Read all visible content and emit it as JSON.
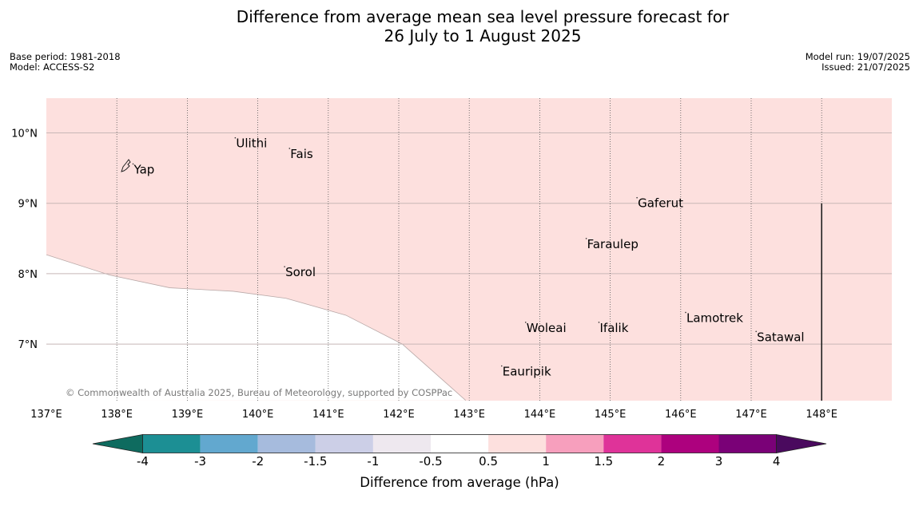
{
  "title": {
    "line1": "Difference from average mean sea level pressure forecast for",
    "line2": "26 July to 1 August 2025"
  },
  "meta_left": {
    "base_period": "Base period: 1981-2018",
    "model": "Model: ACCESS-S2"
  },
  "meta_right": {
    "model_run": "Model run: 19/07/2025",
    "issued": "Issued: 21/07/2025"
  },
  "map": {
    "fill_color": "#fde0de",
    "background_color": "#ffffff",
    "lon_ticks": [
      "137°E",
      "138°E",
      "139°E",
      "140°E",
      "141°E",
      "142°E",
      "143°E",
      "144°E",
      "145°E",
      "146°E",
      "147°E",
      "148°E"
    ],
    "lon_values": [
      137,
      138,
      139,
      140,
      141,
      142,
      143,
      144,
      145,
      146,
      147,
      148
    ],
    "lat_ticks": [
      "10°N",
      "9°N",
      "8°N",
      "7°N"
    ],
    "lat_values": [
      10,
      9,
      8,
      7
    ],
    "lon_range": [
      137,
      149
    ],
    "lat_range": [
      6.2,
      10.5
    ],
    "boundary": [
      [
        137,
        8.27
      ],
      [
        137.9,
        7.98
      ],
      [
        138.75,
        7.8
      ],
      [
        139.65,
        7.75
      ],
      [
        140.4,
        7.65
      ],
      [
        141.25,
        7.41
      ],
      [
        142.05,
        7.0
      ],
      [
        142.95,
        6.2
      ]
    ],
    "places": [
      {
        "name": "Ulithi",
        "lon": 139.68,
        "lat": 9.85
      },
      {
        "name": "Fais",
        "lon": 140.45,
        "lat": 9.7
      },
      {
        "name": "Yap",
        "lon": 138.23,
        "lat": 9.48
      },
      {
        "name": "Gaferut",
        "lon": 145.38,
        "lat": 9.0
      },
      {
        "name": "Faraulep",
        "lon": 144.66,
        "lat": 8.42
      },
      {
        "name": "Sorol",
        "lon": 140.38,
        "lat": 8.02
      },
      {
        "name": "Lamotrek",
        "lon": 146.07,
        "lat": 7.37
      },
      {
        "name": "Satawal",
        "lon": 147.07,
        "lat": 7.1
      },
      {
        "name": "Woleai",
        "lon": 143.8,
        "lat": 7.23
      },
      {
        "name": "Ifalik",
        "lon": 144.84,
        "lat": 7.23
      },
      {
        "name": "Eauripik",
        "lon": 143.46,
        "lat": 6.61
      }
    ],
    "boundary_line": {
      "lon": 148,
      "lat": [
        6.2,
        9.0
      ]
    },
    "copyright": "© Commonwealth of Australia 2025, Bureau of Meteorology, supported by COSPPac"
  },
  "colorbar": {
    "label": "Difference from average (hPa)",
    "ticks": [
      "-4",
      "-3",
      "-2",
      "-1.5",
      "-1",
      "-0.5",
      "0.5",
      "1",
      "1.5",
      "2",
      "3",
      "4"
    ],
    "low_extend_color": "#0e6b5f",
    "high_extend_color": "#4a0a5e",
    "colors": [
      "#1c8f94",
      "#62a8cf",
      "#a6bbdd",
      "#cccfe7",
      "#eee8ef",
      "#ffffff",
      "#fde0de",
      "#f79fbd",
      "#df3399",
      "#ad017e",
      "#7a0177"
    ]
  }
}
